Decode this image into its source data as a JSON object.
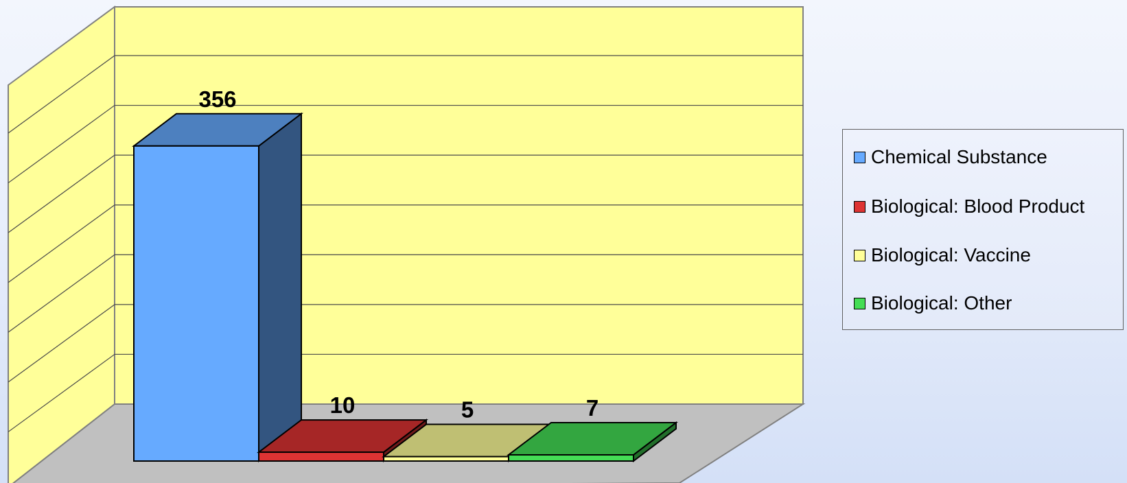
{
  "chart_data": {
    "type": "bar",
    "categories": [
      "Chemical Substance",
      "Biological: Blood Product",
      "Biological: Vaccine",
      "Biological: Other"
    ],
    "values": [
      356,
      10,
      5,
      7
    ],
    "data_labels": [
      "356",
      "10",
      "5",
      "7"
    ],
    "title": "",
    "xlabel": "",
    "ylabel": "",
    "ylim": [
      0,
      400
    ],
    "grid": true,
    "three_d": true,
    "legend_position": "right",
    "legend": [
      {
        "label": "Chemical Substance",
        "color": "#66aaff"
      },
      {
        "label": "Biological: Blood Product",
        "color": "#dd3333"
      },
      {
        "label": "Biological: Vaccine",
        "color": "#ffff99"
      },
      {
        "label": "Biological: Other",
        "color": "#44dd55"
      }
    ],
    "colors": {
      "back_wall": "#ffff99",
      "floor": "#c0c0c0",
      "grid_line": "#4a4a4a"
    }
  }
}
